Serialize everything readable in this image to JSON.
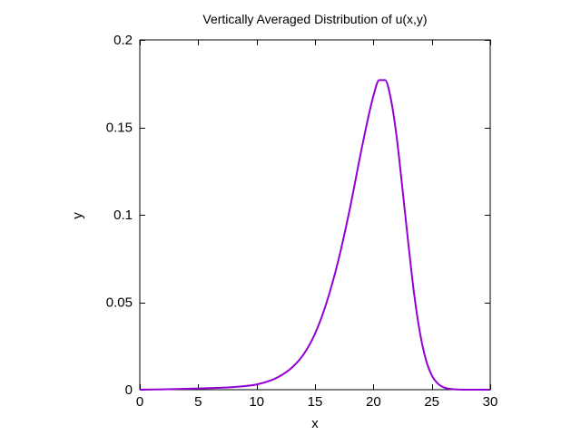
{
  "chart_data": {
    "type": "line",
    "title": "Vertically Averaged Distribution of u(x,y)",
    "xlabel": "x",
    "ylabel": "y",
    "xlim": [
      0,
      30
    ],
    "ylim": [
      0,
      0.2
    ],
    "x_ticks": [
      0,
      5,
      10,
      15,
      20,
      25,
      30
    ],
    "x_tick_labels": [
      "0",
      "5",
      "10",
      "15",
      "20",
      "25",
      "30"
    ],
    "y_ticks": [
      0,
      0.05,
      0.1,
      0.15,
      0.2
    ],
    "y_tick_labels": [
      "0",
      "0.05",
      "0.1",
      "0.15",
      "0.2"
    ],
    "grid": false,
    "series": [
      {
        "color": "#9400d3",
        "x": [
          0,
          2,
          4,
          6,
          8,
          10,
          11,
          12,
          13,
          14,
          15,
          16,
          17,
          18,
          19,
          20,
          20.5,
          21,
          21.5,
          22,
          22.5,
          23,
          23.5,
          24,
          24.5,
          25,
          25.5,
          26,
          26.5,
          27,
          28,
          29,
          30
        ],
        "y": [
          0.0,
          0.0002,
          0.0005,
          0.0009,
          0.0015,
          0.003,
          0.0048,
          0.0078,
          0.0125,
          0.02,
          0.032,
          0.05,
          0.074,
          0.104,
          0.138,
          0.168,
          0.177,
          0.177,
          0.166,
          0.144,
          0.114,
          0.083,
          0.054,
          0.032,
          0.017,
          0.0082,
          0.0036,
          0.0014,
          0.0005,
          0.0002,
          0.0,
          0.0,
          0.0
        ]
      }
    ]
  }
}
